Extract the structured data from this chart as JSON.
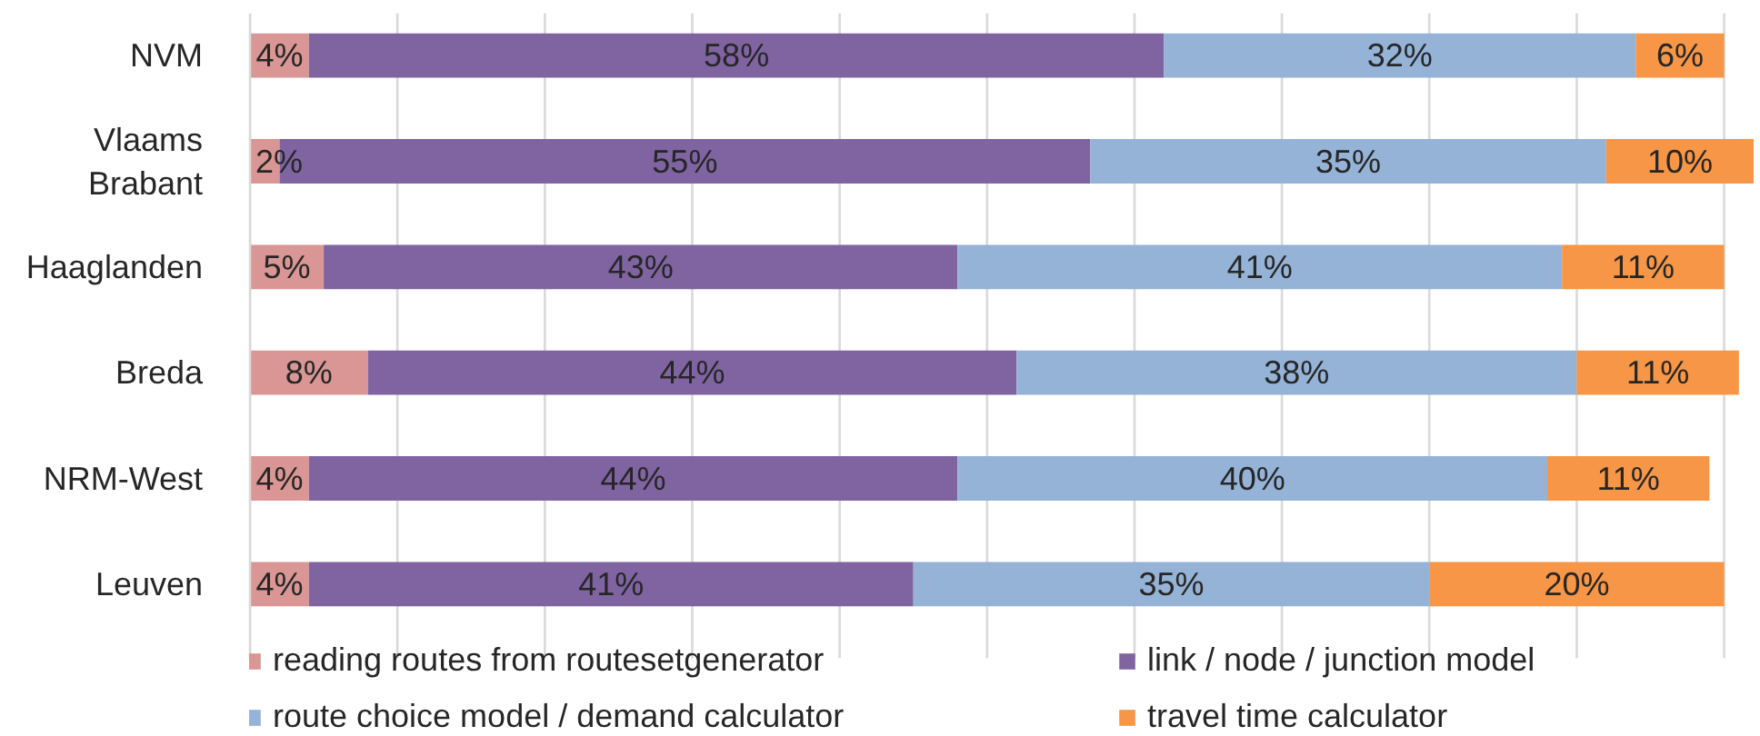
{
  "chart_data": {
    "type": "bar",
    "orientation": "horizontal",
    "stacked": true,
    "categories": [
      "NVM",
      "Vlaams Brabant",
      "Haaglanden",
      "Breda",
      "NRM-West",
      "Leuven"
    ],
    "series": [
      {
        "name": "reading routes from routesetgenerator",
        "color": "#d99694",
        "values": [
          4,
          2,
          5,
          8,
          4,
          4
        ],
        "value_labels": [
          "4%",
          "2%",
          "5%",
          "8%",
          "4%",
          "4%"
        ]
      },
      {
        "name": "link / node / junction model",
        "color": "#8064a2",
        "values": [
          58,
          55,
          43,
          44,
          44,
          41
        ],
        "value_labels": [
          "58%",
          "55%",
          "43%",
          "44%",
          "44%",
          "41%"
        ]
      },
      {
        "name": "route choice model / demand calculator",
        "color": "#95b3d7",
        "values": [
          32,
          35,
          41,
          38,
          40,
          35
        ],
        "value_labels": [
          "32%",
          "35%",
          "41%",
          "38%",
          "40%",
          "35%"
        ]
      },
      {
        "name": "travel time calculator",
        "color": "#f79646",
        "values": [
          6,
          10,
          11,
          11,
          11,
          20
        ],
        "value_labels": [
          "6%",
          "10%",
          "11%",
          "11%",
          "11%",
          "20%"
        ]
      }
    ],
    "xlim": [
      0,
      102
    ],
    "xticks": [
      {
        "value": 0,
        "label": null
      },
      {
        "value": 10,
        "label": null
      },
      {
        "value": 20,
        "label": null
      },
      {
        "value": 30,
        "label": null
      },
      {
        "value": 40,
        "label": null
      },
      {
        "value": 50,
        "label": null
      },
      {
        "value": 60,
        "label": null
      },
      {
        "value": 70,
        "label": null
      },
      {
        "value": 80,
        "label": null
      },
      {
        "value": 90,
        "label": null
      },
      {
        "value": 100,
        "label": null
      }
    ],
    "grid": "x",
    "legend": "bottom",
    "tick_labels": "y"
  }
}
